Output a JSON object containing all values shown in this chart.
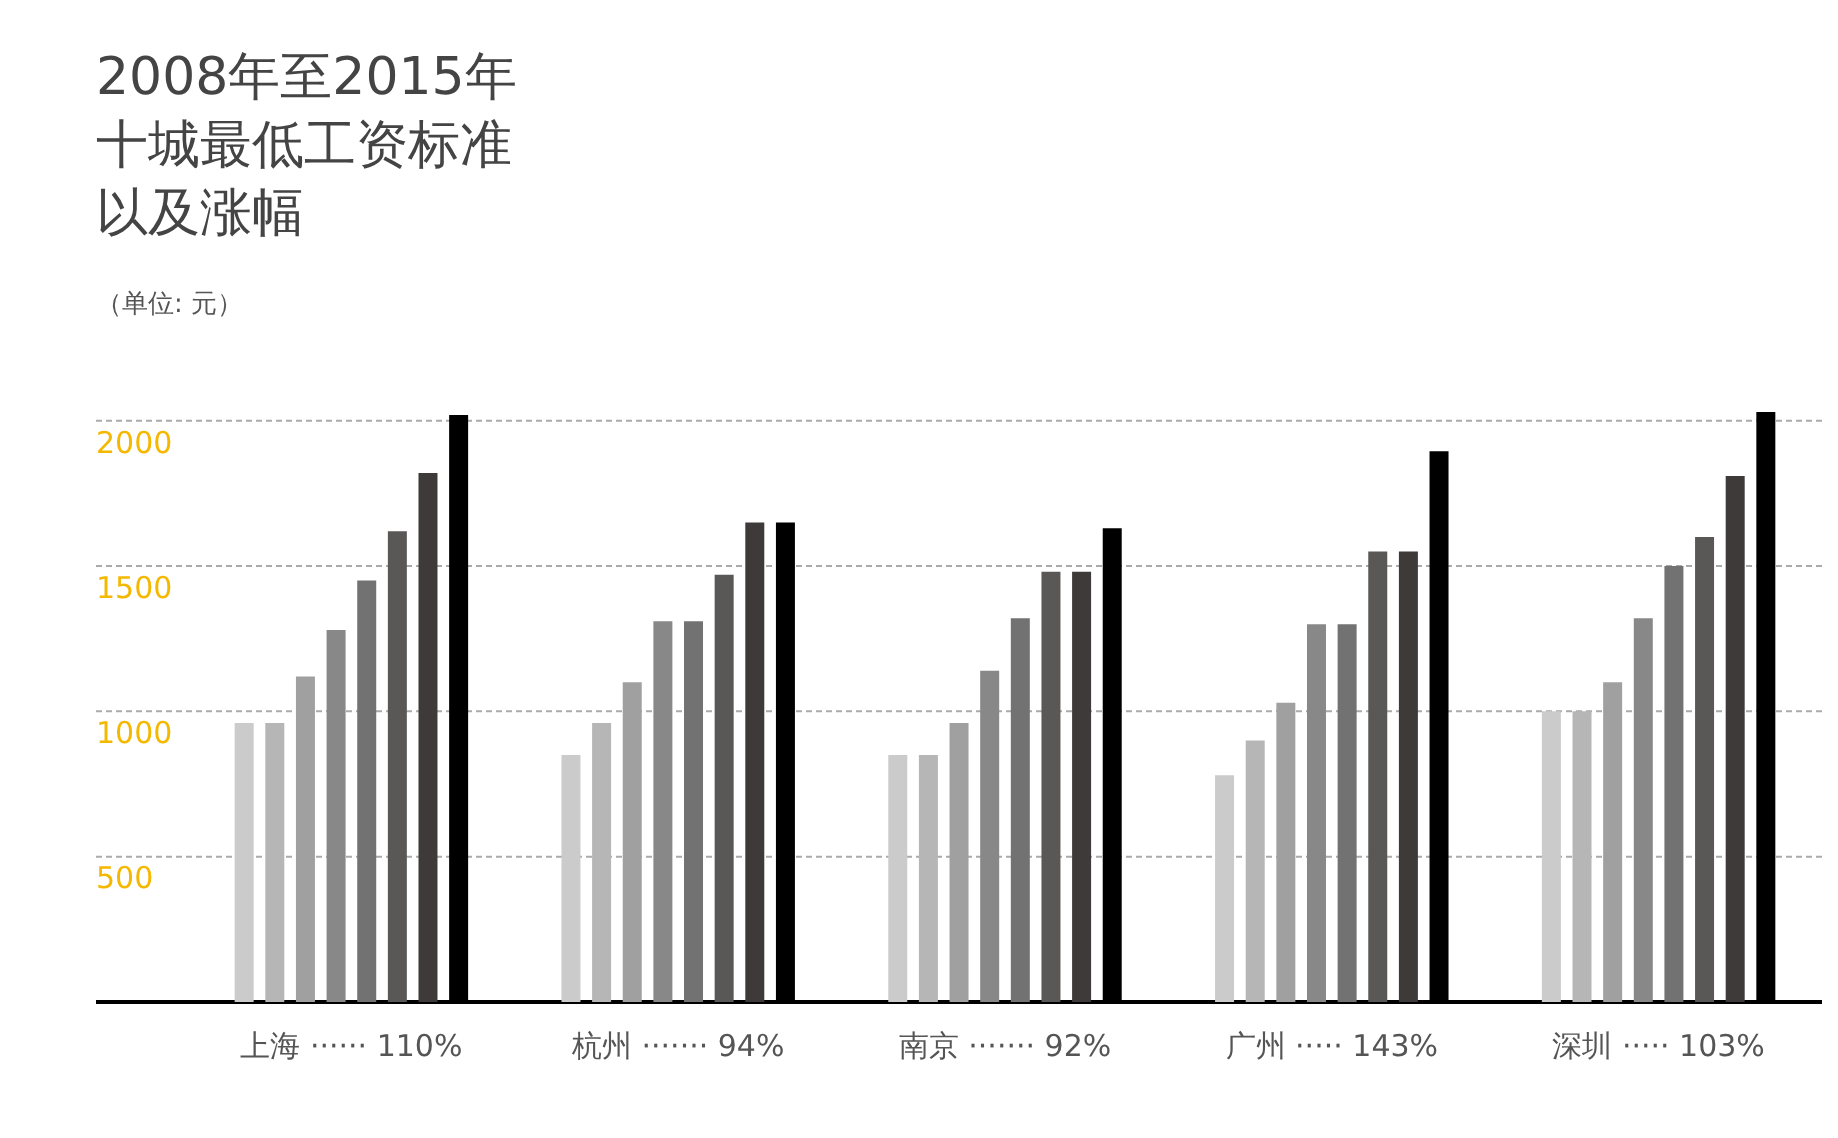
{
  "chart_data": {
    "type": "bar",
    "title": "2008年至2015年十城最低工资标准以及涨幅",
    "subtitle": "（单位: 元）",
    "categories": [
      "上海 ······ 110%",
      "杭州 ······· 94%",
      "南京 ······· 92%",
      "广州 ····· 143%",
      "深圳 ····· 103%"
    ],
    "series": [
      {
        "color": "#cbcbcb",
        "values": [
          960,
          850,
          850,
          780,
          1000
        ]
      },
      {
        "color": "#b5b6b5",
        "values": [
          960,
          960,
          850,
          900,
          1000
        ]
      },
      {
        "color": "#a0a0a0",
        "values": [
          1120,
          1100,
          960,
          1030,
          1100
        ]
      },
      {
        "color": "#888888",
        "values": [
          1280,
          1310,
          1140,
          1300,
          1320
        ]
      },
      {
        "color": "#727272",
        "values": [
          1450,
          1310,
          1320,
          1300,
          1500
        ]
      },
      {
        "color": "#5a5857",
        "values": [
          1620,
          1470,
          1480,
          1550,
          1600
        ]
      },
      {
        "color": "#3e3a39",
        "values": [
          1820,
          1650,
          1480,
          1550,
          1810
        ]
      },
      {
        "color": "#000000",
        "values": [
          2020,
          1650,
          1630,
          1895,
          2030
        ]
      }
    ],
    "ylim": [
      0,
      2030
    ],
    "yticks": [
      {
        "value": 0,
        "label": null
      },
      500,
      1000,
      1500,
      2000
    ],
    "grid": "y",
    "legend": false
  }
}
